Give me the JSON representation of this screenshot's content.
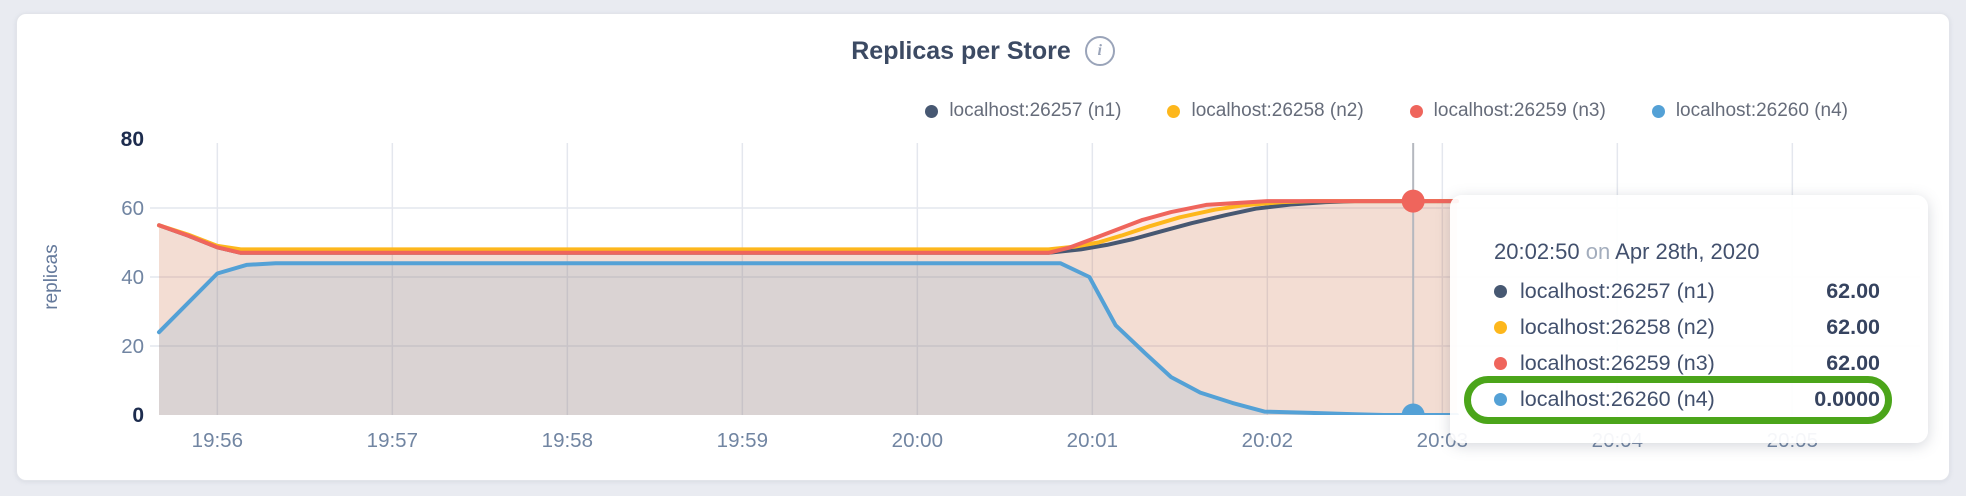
{
  "header": {
    "title": "Replicas per Store",
    "info_icon": "i"
  },
  "legend": [
    {
      "label": "localhost:26257 (n1)",
      "color": "#475872"
    },
    {
      "label": "localhost:26258 (n2)",
      "color": "#fdb71c"
    },
    {
      "label": "localhost:26259 (n3)",
      "color": "#ef655c"
    },
    {
      "label": "localhost:26260 (n4)",
      "color": "#54a1d6"
    }
  ],
  "chart_data": {
    "type": "area",
    "title": "Replicas per Store",
    "ylabel": "replicas",
    "ylim": [
      0,
      80
    ],
    "yticks": [
      {
        "v": 0,
        "label": "0",
        "bold": true
      },
      {
        "v": 20,
        "label": "20",
        "bold": false
      },
      {
        "v": 40,
        "label": "40",
        "bold": false
      },
      {
        "v": 60,
        "label": "60",
        "bold": false
      },
      {
        "v": 80,
        "label": "80",
        "bold": true
      }
    ],
    "grid_yvalues": [
      20,
      40,
      60
    ],
    "x_start_time": "19:55:40",
    "xticks": [
      {
        "t": 20,
        "label": "19:56"
      },
      {
        "t": 80,
        "label": "19:57"
      },
      {
        "t": 140,
        "label": "19:58"
      },
      {
        "t": 200,
        "label": "19:59"
      },
      {
        "t": 260,
        "label": "20:00"
      },
      {
        "t": 320,
        "label": "20:01"
      },
      {
        "t": 380,
        "label": "20:02"
      },
      {
        "t": 440,
        "label": "20:03"
      },
      {
        "t": 500,
        "label": "20:04"
      },
      {
        "t": 560,
        "label": "20:05"
      }
    ],
    "series": [
      {
        "name": "localhost:26257 (n1)",
        "color": "#475872",
        "fill_alpha": 0.06,
        "points": [
          [
            0,
            55
          ],
          [
            10,
            52
          ],
          [
            20,
            48.6
          ],
          [
            28,
            47
          ],
          [
            305,
            47
          ],
          [
            316,
            48
          ],
          [
            325,
            49.3
          ],
          [
            334,
            51
          ],
          [
            344,
            53.3
          ],
          [
            354,
            55.6
          ],
          [
            366,
            58
          ],
          [
            376,
            59.8
          ],
          [
            388,
            61
          ],
          [
            400,
            61.7
          ],
          [
            410,
            62
          ],
          [
            445,
            62
          ]
        ]
      },
      {
        "name": "localhost:26258 (n2)",
        "color": "#fdb71c",
        "fill_alpha": 0.08,
        "points": [
          [
            0,
            55
          ],
          [
            10,
            52.3
          ],
          [
            20,
            49
          ],
          [
            28,
            48
          ],
          [
            305,
            48
          ],
          [
            314,
            48.8
          ],
          [
            322,
            50
          ],
          [
            330,
            52
          ],
          [
            340,
            54.8
          ],
          [
            350,
            57.3
          ],
          [
            362,
            59.5
          ],
          [
            372,
            60.8
          ],
          [
            385,
            61.7
          ],
          [
            395,
            62
          ],
          [
            445,
            62
          ]
        ]
      },
      {
        "name": "localhost:26259 (n3)",
        "color": "#ef655c",
        "fill_alpha": 0.13,
        "points": [
          [
            0,
            55
          ],
          [
            10,
            52
          ],
          [
            20,
            48.6
          ],
          [
            28,
            47
          ],
          [
            305,
            47
          ],
          [
            312,
            48.5
          ],
          [
            319,
            50.7
          ],
          [
            328,
            53.6
          ],
          [
            337,
            56.5
          ],
          [
            347,
            58.8
          ],
          [
            359,
            60.9
          ],
          [
            368,
            61.4
          ],
          [
            380,
            62
          ],
          [
            445,
            62
          ]
        ]
      },
      {
        "name": "localhost:26260 (n4)",
        "color": "#54a1d6",
        "fill_alpha": 0.16,
        "points": [
          [
            0,
            24
          ],
          [
            20,
            41
          ],
          [
            30,
            43.5
          ],
          [
            40,
            44
          ],
          [
            300,
            44
          ],
          [
            309,
            44
          ],
          [
            319,
            40
          ],
          [
            328,
            26
          ],
          [
            338,
            18
          ],
          [
            347,
            11
          ],
          [
            357,
            6.5
          ],
          [
            368,
            3.5
          ],
          [
            379,
            1
          ],
          [
            395,
            0.6
          ],
          [
            410,
            0.2
          ],
          [
            420,
            0
          ],
          [
            445,
            0
          ]
        ]
      }
    ],
    "hover": {
      "t": 430,
      "time_label": "20:02:50",
      "markers": [
        {
          "value": 62,
          "color": "#ef655c"
        },
        {
          "value": 0,
          "color": "#54a1d6"
        }
      ]
    }
  },
  "tooltip": {
    "time": "20:02:50",
    "on_word": "on",
    "date": "Apr 28th, 2020",
    "rows": [
      {
        "label": "localhost:26257 (n1)",
        "value": "62.00",
        "color": "#475872",
        "highlighted": false
      },
      {
        "label": "localhost:26258 (n2)",
        "value": "62.00",
        "color": "#fdb71c",
        "highlighted": false
      },
      {
        "label": "localhost:26259 (n3)",
        "value": "62.00",
        "color": "#ef655c",
        "highlighted": false
      },
      {
        "label": "localhost:26260 (n4)",
        "value": "0.0000",
        "color": "#54a1d6",
        "highlighted": true
      }
    ],
    "highlight_color": "#4ba51a"
  }
}
